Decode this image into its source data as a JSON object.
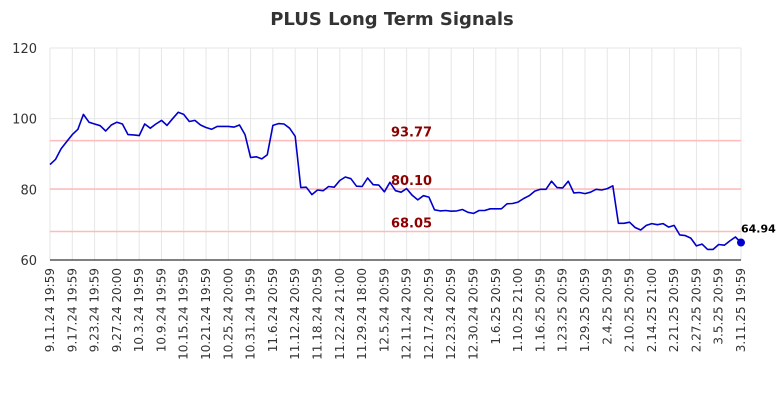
{
  "chart_data": {
    "type": "line",
    "title": "PLUS Long Term Signals",
    "ylim": [
      60,
      120
    ],
    "yticks": [
      "60",
      "80",
      "100",
      "120"
    ],
    "grid": true,
    "xtick_labels": [
      "9.11.24 19:59",
      "9.17.24 19:59",
      "9.23.24 19:59",
      "9.27.24 20:00",
      "10.3.24 19:59",
      "10.9.24 19:59",
      "10.15.24 19:59",
      "10.21.24 19:59",
      "10.25.24 20:00",
      "10.31.24 19:59",
      "11.6.24 20:59",
      "11.12.24 20:59",
      "11.18.24 20:59",
      "11.22.24 21:00",
      "11.29.24 18:00",
      "12.5.24 20:59",
      "12.11.24 20:59",
      "12.17.24 20:59",
      "12.23.24 20:59",
      "12.30.24 20:59",
      "1.6.25 20:59",
      "1.10.25 21:00",
      "1.16.25 20:59",
      "1.23.25 20:59",
      "1.29.25 20:59",
      "2.4.25 20:59",
      "2.10.25 20:59",
      "2.14.25 21:00",
      "2.21.25 20:59",
      "2.27.25 20:59",
      "3.5.25 20:59",
      "3.11.25 19:59"
    ],
    "levels": [
      {
        "value": 93.77,
        "label": "93.77",
        "color": "#ffbbbb"
      },
      {
        "value": 80.1,
        "label": "80.10",
        "color": "#ffbbbb"
      },
      {
        "value": 68.05,
        "label": "68.05",
        "color": "#ffbbbb"
      }
    ],
    "series": [
      {
        "color": "#0000cc",
        "values": [
          87.0,
          88.5,
          91.5,
          93.5,
          95.5,
          97.0,
          101.2,
          99.0,
          98.5,
          98.0,
          96.5,
          98.2,
          99.0,
          98.5,
          95.5,
          95.4,
          95.2,
          98.5,
          97.3,
          98.5,
          99.5,
          98.1,
          100.0,
          101.8,
          101.2,
          99.2,
          99.5,
          98.2,
          97.5,
          97.0,
          97.8,
          97.8,
          97.8,
          97.6,
          98.2,
          95.5,
          89.0,
          89.2,
          88.6,
          89.8,
          98.1,
          98.6,
          98.5,
          97.3,
          95.0,
          80.5,
          80.6,
          78.5,
          79.8,
          79.6,
          80.8,
          80.6,
          82.5,
          83.5,
          83.0,
          80.9,
          80.8,
          83.2,
          81.3,
          81.2,
          79.3,
          82.0,
          79.6,
          79.2,
          80.2,
          78.3,
          77.0,
          78.2,
          77.8,
          74.2,
          73.9,
          74.0,
          73.8,
          73.9,
          74.3,
          73.5,
          73.2,
          74.0,
          74.0,
          74.5,
          74.5,
          74.5,
          75.9,
          76.0,
          76.4,
          77.4,
          78.2,
          79.5,
          80.0,
          80.0,
          82.3,
          80.5,
          80.4,
          82.3,
          79.0,
          79.1,
          78.8,
          79.2,
          80.0,
          79.8,
          80.2,
          81.0,
          70.4,
          70.4,
          70.7,
          69.2,
          68.5,
          69.8,
          70.3,
          70.0,
          70.3,
          69.3,
          69.8,
          67.1,
          66.9,
          66.2,
          64.0,
          64.5,
          63.0,
          63.0,
          64.4,
          64.2,
          65.4,
          66.5,
          64.94
        ]
      }
    ],
    "last_label": "64.94"
  }
}
